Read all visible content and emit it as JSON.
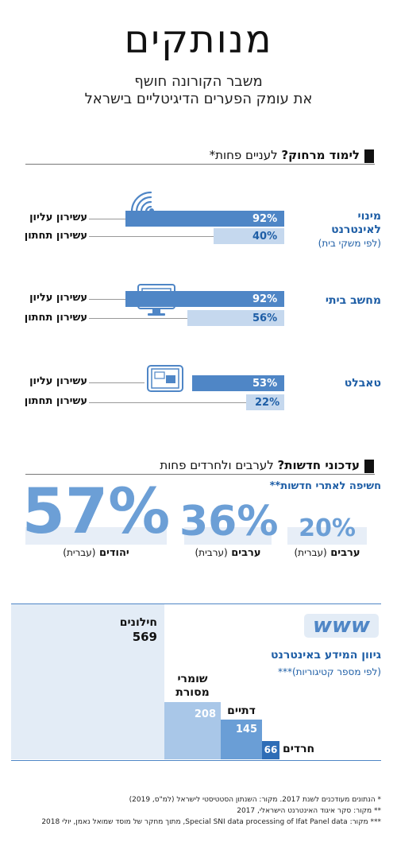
{
  "header": {
    "title": "מנותקים",
    "subtitle_line1": "משבר הקורונה חושף",
    "subtitle_line2": "את עומק הפערים הדיגיטליים בישראל"
  },
  "section1": {
    "heading_bold": "לימוד מרחוק?",
    "heading_light": " לעניים פחות*",
    "top_decile": "עשירון עליון",
    "bottom_decile": "עשירון תחתון",
    "groups": [
      {
        "title": "מינוי לאינטרנט",
        "subtitle": "(לפי משקי בית)",
        "icon": "wifi-icon",
        "top": 92,
        "bottom": 40,
        "top_label": "92%",
        "bottom_label": "40%"
      },
      {
        "title": "מחשב ביתי",
        "subtitle": "",
        "icon": "computer-icon",
        "top": 92,
        "bottom": 56,
        "top_label": "92%",
        "bottom_label": "56%"
      },
      {
        "title": "טאבלט",
        "subtitle": "",
        "icon": "tablet-icon",
        "top": 53,
        "bottom": 22,
        "top_label": "53%",
        "bottom_label": "22%"
      }
    ]
  },
  "section2": {
    "heading_bold": "עדכוני חדשות?",
    "heading_light": " לערבים ולחרדים פחות",
    "subheading": "חשיפה לאתרי חדשות**",
    "items": [
      {
        "value": "57%",
        "group": "יהודים",
        "lang": "(עברית)"
      },
      {
        "value": "36%",
        "group": "ערבים",
        "lang": "(ערבית)"
      },
      {
        "value": "20%",
        "group": "ערבים",
        "lang": "(עברית)"
      }
    ]
  },
  "section3": {
    "logo_text": "www",
    "heading": "גיוון המידע באינטרנט",
    "subheading": "(לפי מספר קטיגוריות)***",
    "items": [
      {
        "name": "חילונים",
        "value": 569,
        "label": "569"
      },
      {
        "name": "שומרי מסורת",
        "value": 208,
        "label": "208"
      },
      {
        "name": "דתיים",
        "value": 145,
        "label": "145"
      },
      {
        "name": "חרדים",
        "value": 66,
        "label": "66"
      }
    ]
  },
  "notes": {
    "n1": "*      הנתונים מעודכנים לשנת 2017. מקור: השנתון הסטטיסטי לישראל (למ\"ס, 2019)",
    "n2": "**     מקור: סקר איגוד האינטרנט הישראלי, 2017",
    "n3": "*** מקור: Special SNI data processing of Ifat Panel data, מתוך מחקר של מוסד שמואל נאמן, יולי 2018"
  },
  "colors": {
    "dark_blue": "#4f86c6",
    "light_blue": "#c5d8ee",
    "text_blue": "#1e5ea6",
    "big_number": "#6c9fd6"
  }
}
